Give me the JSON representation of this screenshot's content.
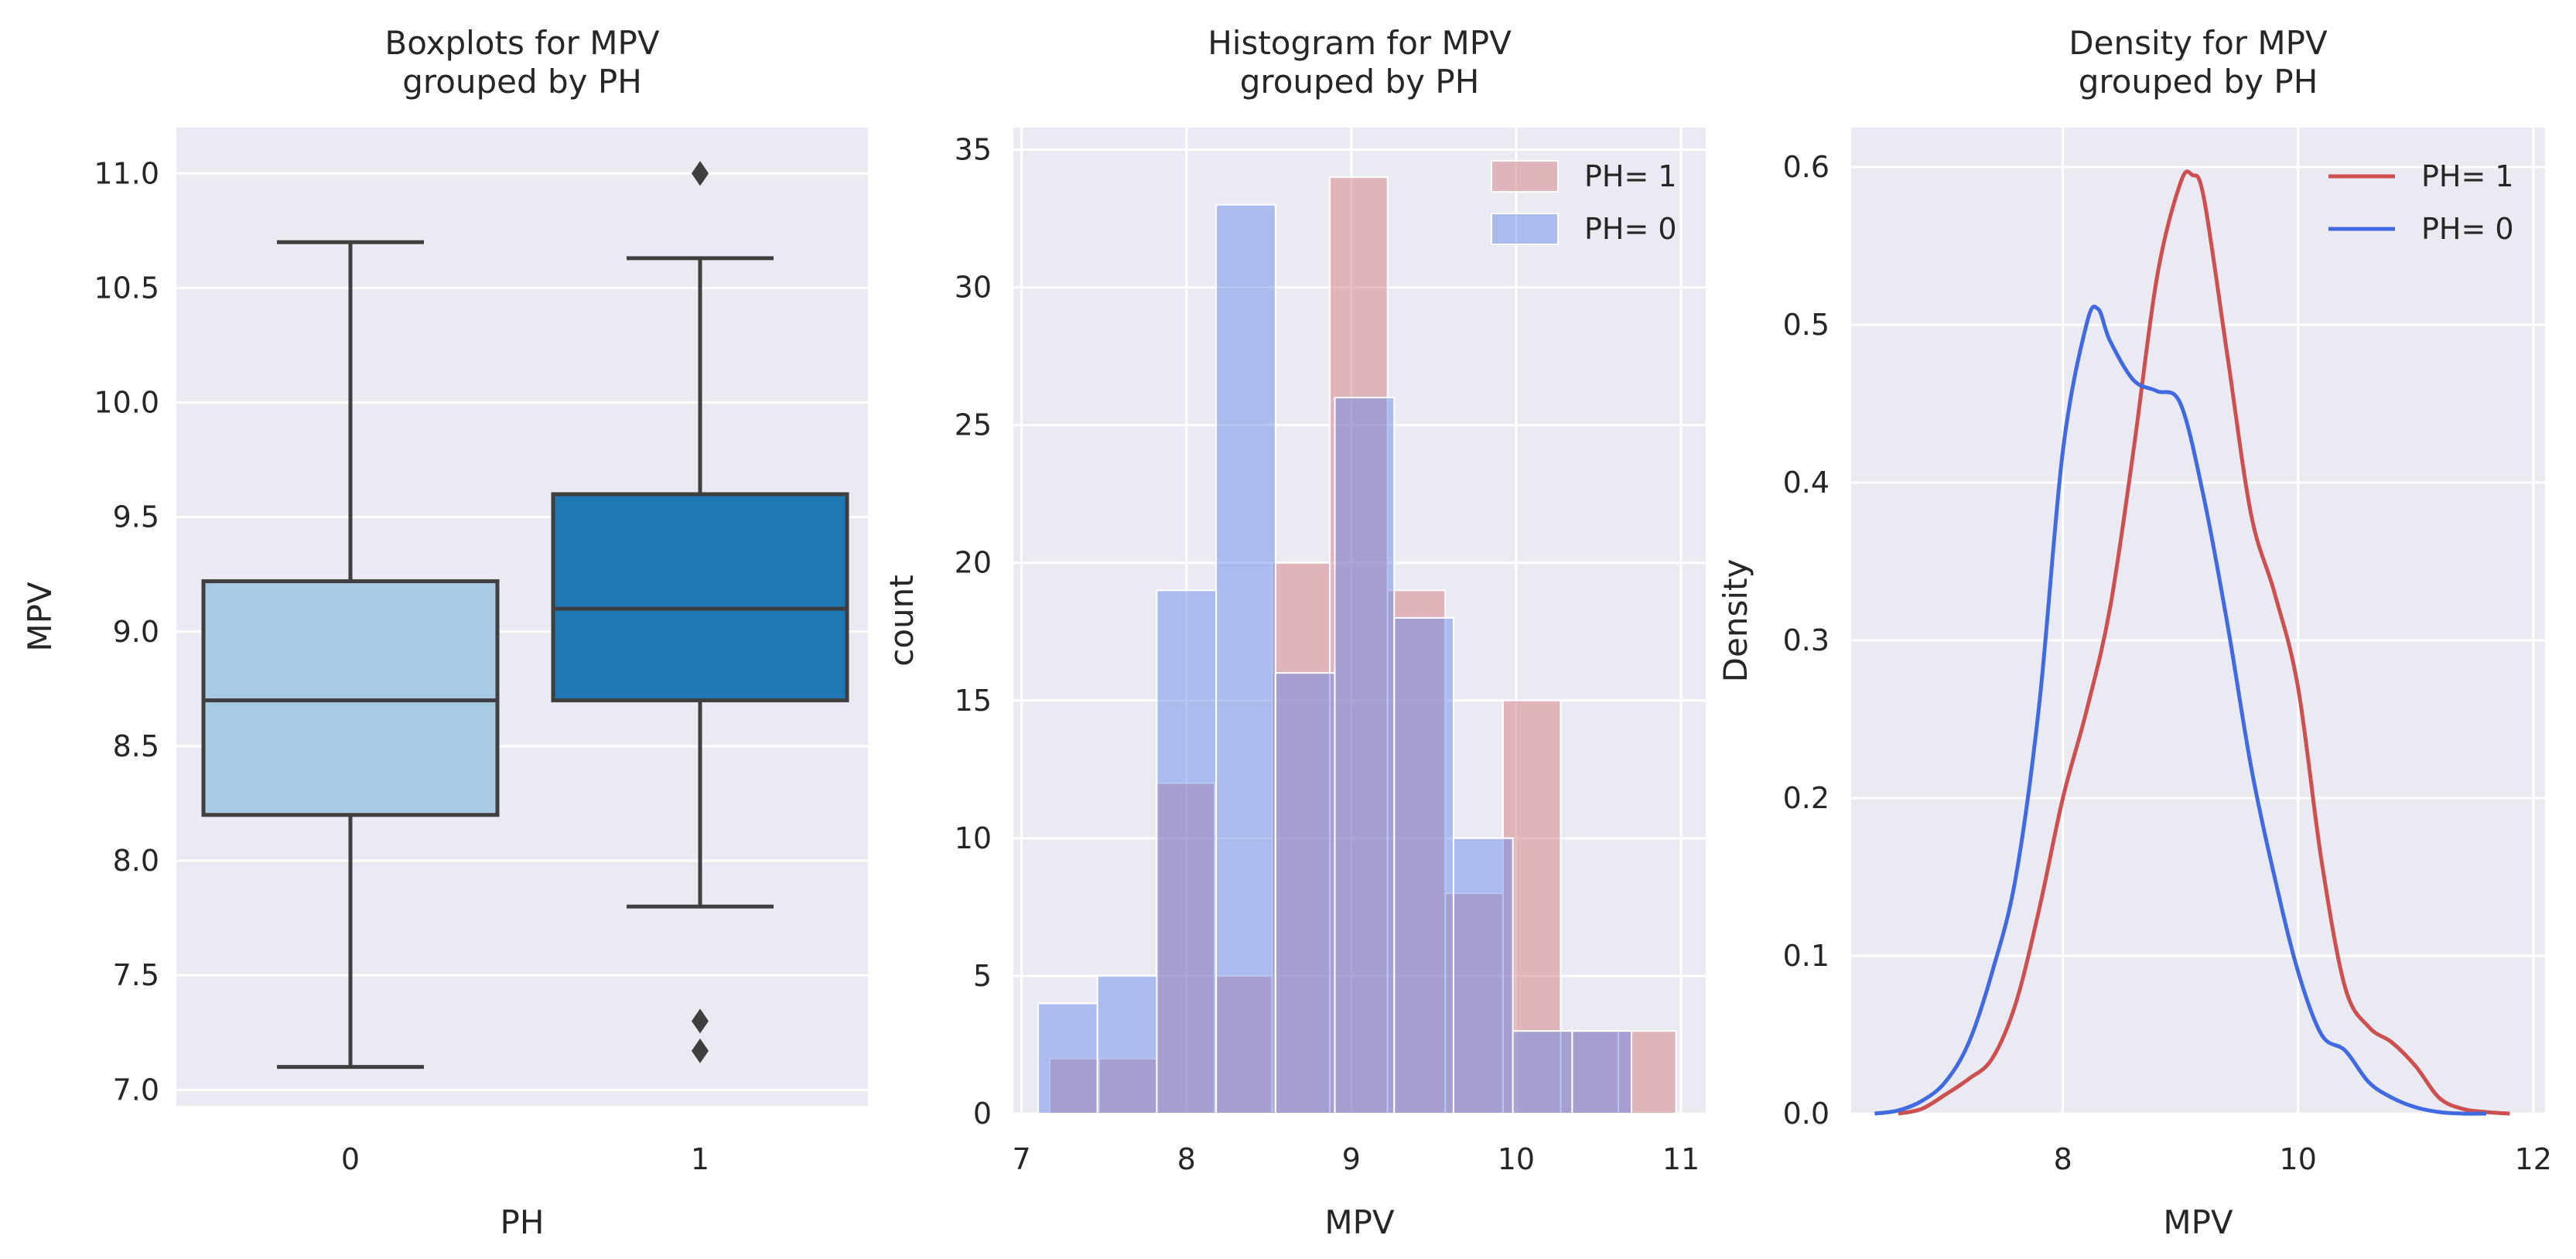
{
  "chart_data": [
    {
      "type": "box",
      "title": "Boxplots for MPV\ngrouped by PH",
      "xlabel": "PH",
      "ylabel": "MPV",
      "ylim": [
        6.93,
        11.2
      ],
      "yticks": [
        "7.0",
        "7.5",
        "8.0",
        "8.5",
        "9.0",
        "9.5",
        "10.0",
        "10.5",
        "11.0"
      ],
      "categories": [
        "0",
        "1"
      ],
      "boxes": [
        {
          "category": "0",
          "whisker_low": 7.1,
          "q1": 8.2,
          "median": 8.7,
          "q3": 9.22,
          "whisker_high": 10.7,
          "outliers": [],
          "color": "#a6cbe3"
        },
        {
          "category": "1",
          "whisker_low": 7.8,
          "q1": 8.7,
          "median": 9.1,
          "q3": 9.6,
          "whisker_high": 10.63,
          "outliers": [
            7.17,
            7.3,
            11.0,
            11.0
          ],
          "color": "#1f77b4"
        }
      ],
      "grid": true
    },
    {
      "type": "histogram",
      "title": "Histogram for MPV\ngrouped by PH",
      "xlabel": "MPV",
      "ylabel": "count",
      "xlim": [
        6.95,
        11.15
      ],
      "ylim": [
        0,
        35.8
      ],
      "xticks": [
        "7",
        "8",
        "9",
        "10",
        "11"
      ],
      "yticks": [
        "0",
        "5",
        "10",
        "15",
        "20",
        "25",
        "30",
        "35"
      ],
      "legend_position": "top-right",
      "series": [
        {
          "name": "PH= 1",
          "color": "#d47d81",
          "bins": [
            [
              7.17,
              7.47,
              2
            ],
            [
              7.47,
              7.82,
              2
            ],
            [
              7.82,
              8.17,
              12
            ],
            [
              8.17,
              8.52,
              5
            ],
            [
              8.52,
              8.87,
              20
            ],
            [
              8.87,
              9.22,
              34
            ],
            [
              9.22,
              9.57,
              19
            ],
            [
              9.57,
              9.92,
              8
            ],
            [
              9.92,
              10.27,
              15
            ],
            [
              10.27,
              10.62,
              3
            ],
            [
              10.62,
              10.97,
              3
            ]
          ]
        },
        {
          "name": "PH= 0",
          "color": "#6d8ce8",
          "bins": [
            [
              7.1,
              7.46,
              4
            ],
            [
              7.46,
              7.82,
              5
            ],
            [
              7.82,
              8.18,
              19
            ],
            [
              8.18,
              8.54,
              33
            ],
            [
              8.54,
              8.9,
              16
            ],
            [
              8.9,
              9.26,
              26
            ],
            [
              9.26,
              9.62,
              18
            ],
            [
              9.62,
              9.98,
              10
            ],
            [
              9.98,
              10.34,
              3
            ],
            [
              10.34,
              10.7,
              3
            ]
          ]
        }
      ],
      "grid": true
    },
    {
      "type": "line",
      "title": "Density for MPV\ngrouped by PH",
      "xlabel": "MPV",
      "ylabel": "Density",
      "xlim": [
        6.2,
        12.1
      ],
      "ylim": [
        0,
        0.625
      ],
      "xticks": [
        "8",
        "10",
        "12"
      ],
      "yticks": [
        "0.0",
        "0.1",
        "0.2",
        "0.3",
        "0.4",
        "0.5",
        "0.6"
      ],
      "legend_position": "top-right",
      "series": [
        {
          "name": "PH= 1",
          "color": "#cd4f4f",
          "x": [
            6.6,
            6.8,
            7.0,
            7.2,
            7.4,
            7.6,
            7.8,
            8.0,
            8.2,
            8.4,
            8.6,
            8.8,
            9.0,
            9.1,
            9.2,
            9.4,
            9.6,
            9.8,
            10.0,
            10.2,
            10.4,
            10.6,
            10.8,
            11.0,
            11.2,
            11.4,
            11.6,
            11.8
          ],
          "y": [
            0.0,
            0.003,
            0.012,
            0.022,
            0.035,
            0.07,
            0.13,
            0.2,
            0.255,
            0.32,
            0.42,
            0.53,
            0.59,
            0.595,
            0.58,
            0.48,
            0.38,
            0.33,
            0.27,
            0.16,
            0.08,
            0.055,
            0.045,
            0.03,
            0.01,
            0.003,
            0.001,
            0.0
          ]
        },
        {
          "name": "PH= 0",
          "color": "#4169e1",
          "x": [
            6.4,
            6.6,
            6.8,
            7.0,
            7.2,
            7.4,
            7.6,
            7.8,
            8.0,
            8.2,
            8.3,
            8.4,
            8.6,
            8.8,
            9.0,
            9.2,
            9.4,
            9.6,
            9.8,
            10.0,
            10.2,
            10.4,
            10.6,
            10.8,
            11.0,
            11.2,
            11.4,
            11.6
          ],
          "y": [
            0.0,
            0.002,
            0.008,
            0.02,
            0.045,
            0.09,
            0.15,
            0.26,
            0.42,
            0.5,
            0.51,
            0.49,
            0.465,
            0.458,
            0.45,
            0.39,
            0.31,
            0.22,
            0.15,
            0.09,
            0.05,
            0.04,
            0.02,
            0.01,
            0.004,
            0.001,
            0.0,
            0.0
          ]
        }
      ],
      "grid": true
    }
  ]
}
